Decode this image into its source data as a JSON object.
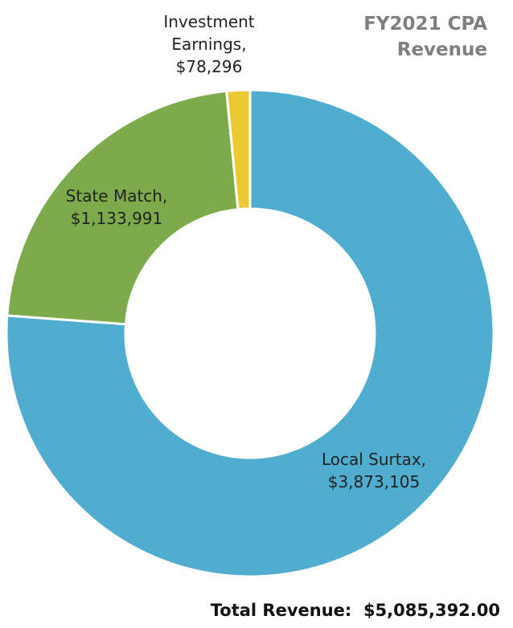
{
  "chart_data": {
    "type": "pie",
    "title": "FY2021 CPA Revenue",
    "categories": [
      "Local Surtax,",
      "State Match,",
      "Investment Earnings,"
    ],
    "values": [
      3873105,
      1133991,
      78296
    ],
    "value_labels": [
      "$3,873,105",
      "$1,133,991",
      "$78,296"
    ],
    "colors": [
      "#4fadcf",
      "#7dab4b",
      "#ebc933"
    ],
    "donut": true,
    "annotation": "Total Revenue:  $5,085,392.00"
  }
}
